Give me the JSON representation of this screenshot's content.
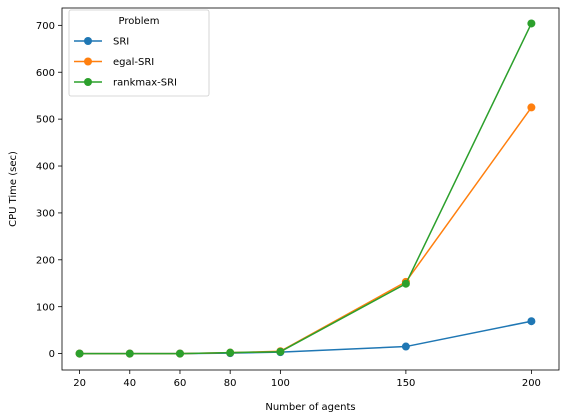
{
  "chart_data": {
    "type": "line",
    "xlabel": "Number of agents",
    "ylabel": "CPU Time (sec)",
    "x": [
      20,
      40,
      60,
      80,
      100,
      150,
      200
    ],
    "xticks": [
      20,
      40,
      60,
      80,
      100,
      150,
      200
    ],
    "yticks": [
      0,
      100,
      200,
      300,
      400,
      500,
      600,
      700
    ],
    "xlim": [
      13,
      211
    ],
    "ylim": [
      -35,
      737
    ],
    "grid": false,
    "legend": {
      "title": "Problem",
      "placement": "top-left"
    },
    "series": [
      {
        "name": "SRI",
        "color": "#1f77b4",
        "values": [
          0,
          0,
          0,
          1,
          3,
          15,
          69
        ]
      },
      {
        "name": "egal-SRI",
        "color": "#ff7f0e",
        "values": [
          0,
          0,
          0,
          2,
          5,
          153,
          525
        ]
      },
      {
        "name": "rankmax-SRI",
        "color": "#2ca02c",
        "values": [
          0,
          0,
          0,
          2,
          4,
          149,
          704
        ]
      }
    ]
  }
}
